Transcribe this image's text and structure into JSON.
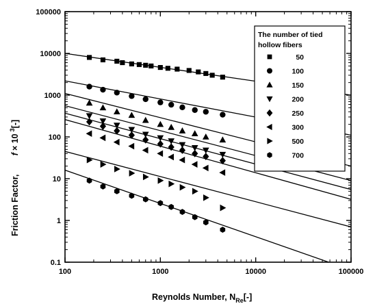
{
  "chart_data": {
    "type": "scatter",
    "title": "",
    "xlabel": "Reynolds Number, N",
    "xlabel_sub": "Re",
    "xlabel_unit": "[-]",
    "ylabel": "Friction Factor,",
    "ylabel_f": "f",
    "ylabel_times": "× 10",
    "ylabel_exp": "3",
    "ylabel_unit": "[-]",
    "x_scale": "log",
    "y_scale": "log",
    "xlim": [
      100,
      100000
    ],
    "ylim": [
      0.1,
      100000
    ],
    "x_ticks": [
      "100",
      "1000",
      "10000",
      "100000"
    ],
    "y_ticks": [
      "0.1",
      "1",
      "10",
      "100",
      "1000",
      "10000",
      "100000"
    ],
    "grid": false,
    "legend": {
      "title_line1": "The number of tied",
      "title_line2": "hollow fibers",
      "placement": "top-right"
    },
    "series": [
      {
        "name": "50",
        "marker": "square",
        "x": [
          180,
          250,
          350,
          400,
          500,
          600,
          700,
          800,
          1000,
          1200,
          1500,
          2000,
          2500,
          3000,
          3500,
          4500
        ],
        "y": [
          8000,
          7000,
          6500,
          6000,
          5600,
          5400,
          5200,
          5000,
          4600,
          4400,
          4200,
          3900,
          3600,
          3300,
          3000,
          2700
        ],
        "fit": [
          [
            100,
            10000
          ],
          [
            100000,
            1000
          ]
        ]
      },
      {
        "name": "100",
        "marker": "circle",
        "x": [
          180,
          250,
          350,
          500,
          700,
          1000,
          1300,
          1700,
          2300,
          3000,
          4500
        ],
        "y": [
          1600,
          1350,
          1150,
          950,
          800,
          670,
          590,
          510,
          440,
          400,
          340
        ],
        "fit": [
          [
            100,
            2200
          ],
          [
            100000,
            110
          ]
        ]
      },
      {
        "name": "150",
        "marker": "triangle-up",
        "x": [
          180,
          250,
          350,
          500,
          700,
          1000,
          1300,
          1700,
          2300,
          3000,
          4500
        ],
        "y": [
          650,
          500,
          400,
          330,
          250,
          200,
          170,
          140,
          120,
          100,
          85
        ],
        "fit": [
          [
            100,
            1100
          ],
          [
            100000,
            20
          ]
        ]
      },
      {
        "name": "200",
        "marker": "triangle-down",
        "x": [
          180,
          250,
          350,
          500,
          700,
          1000,
          1300,
          1700,
          2300,
          3000,
          4500
        ],
        "y": [
          320,
          240,
          190,
          150,
          115,
          95,
          80,
          65,
          55,
          48,
          38
        ],
        "fit": [
          [
            100,
            560
          ],
          [
            100000,
            9
          ]
        ]
      },
      {
        "name": "250",
        "marker": "diamond",
        "x": [
          180,
          250,
          350,
          500,
          700,
          1000,
          1300,
          1700,
          2300,
          3000,
          4500
        ],
        "y": [
          230,
          180,
          140,
          110,
          85,
          68,
          57,
          48,
          40,
          34,
          27
        ],
        "fit": [
          [
            100,
            370
          ],
          [
            100000,
            5.5
          ]
        ]
      },
      {
        "name": "300",
        "marker": "triangle-left",
        "x": [
          180,
          250,
          350,
          500,
          700,
          1000,
          1300,
          1700,
          2300,
          3000,
          4500
        ],
        "y": [
          120,
          95,
          75,
          60,
          48,
          40,
          33,
          28,
          22,
          18,
          14
        ],
        "fit": [
          [
            100,
            260
          ],
          [
            100000,
            3.2
          ]
        ]
      },
      {
        "name": "500",
        "marker": "triangle-right",
        "x": [
          180,
          250,
          350,
          500,
          700,
          1000,
          1300,
          1700,
          2300,
          3000,
          4500
        ],
        "y": [
          28,
          22,
          17,
          13.5,
          11,
          9,
          7.5,
          6.2,
          5,
          3.5,
          2
        ],
        "fit": [
          [
            100,
            45
          ],
          [
            100000,
            0.7
          ]
        ]
      },
      {
        "name": "700",
        "marker": "hexagon",
        "x": [
          180,
          250,
          350,
          500,
          700,
          1000,
          1300,
          1700,
          2300,
          3000,
          4500
        ],
        "y": [
          9,
          6.5,
          5,
          3.9,
          3.2,
          2.6,
          2.1,
          1.6,
          1.2,
          0.9,
          0.6
        ],
        "fit": [
          [
            100,
            16
          ],
          [
            100000,
            0.065
          ]
        ]
      }
    ]
  }
}
